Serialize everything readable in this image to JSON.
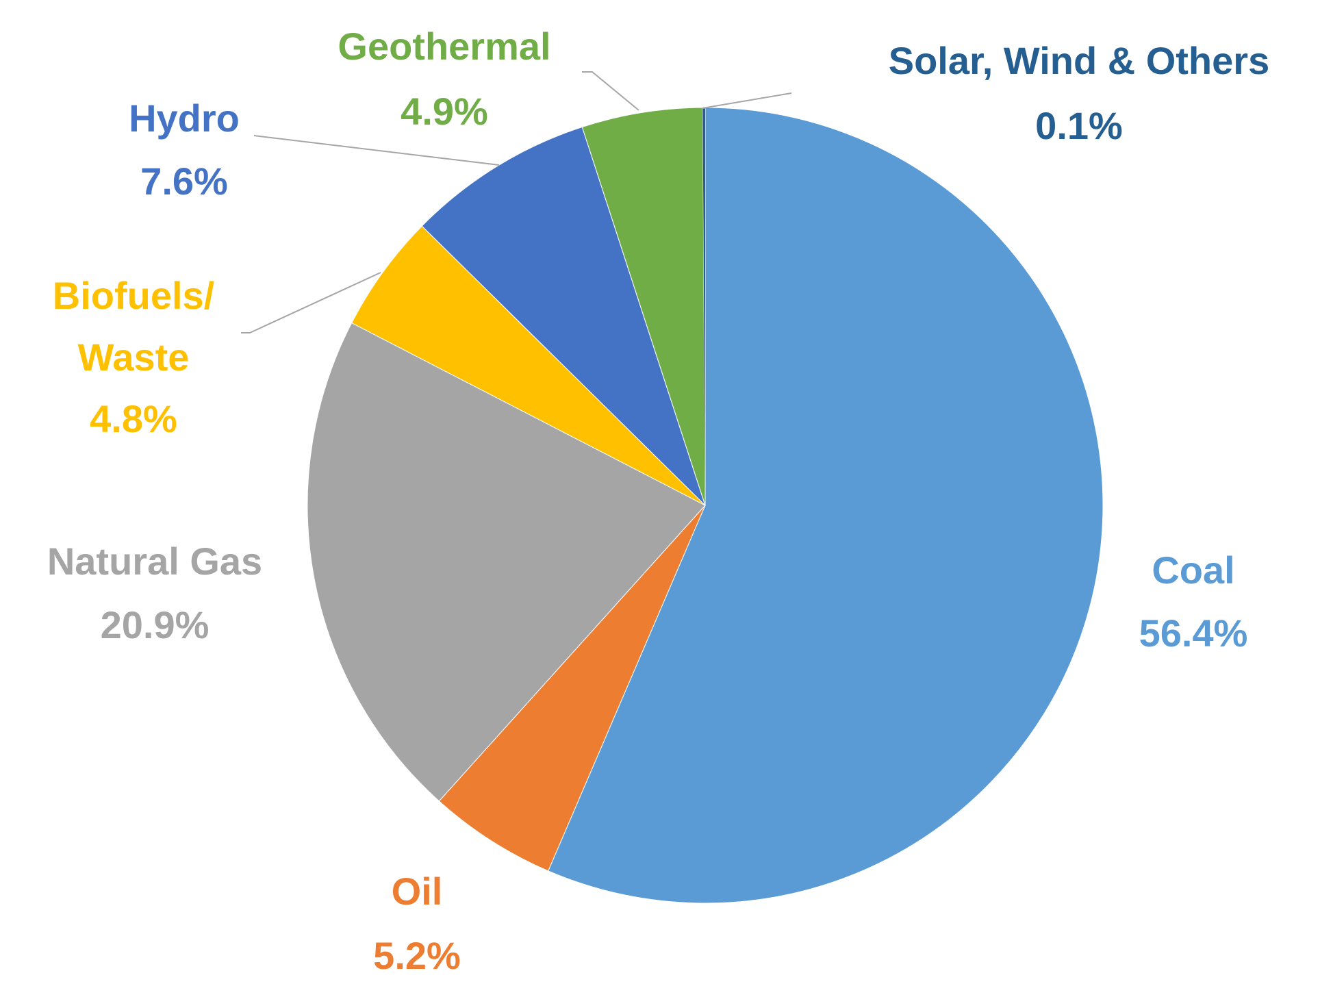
{
  "chart_data": {
    "type": "pie",
    "categories": [
      "Coal",
      "Oil",
      "Natural Gas",
      "Biofuels/\nWaste",
      "Hydro",
      "Geothermal",
      "Solar, Wind & Others"
    ],
    "values": [
      56.4,
      5.2,
      20.9,
      4.8,
      7.6,
      4.9,
      0.1
    ],
    "value_labels": [
      "56.4%",
      "5.2%",
      "20.9%",
      "4.8%",
      "7.6%",
      "4.9%",
      "0.1%"
    ],
    "colors": [
      "#5b9bd5",
      "#ed7d31",
      "#a5a5a5",
      "#ffc000",
      "#4472c4",
      "#70ad47",
      "#255e91"
    ]
  }
}
